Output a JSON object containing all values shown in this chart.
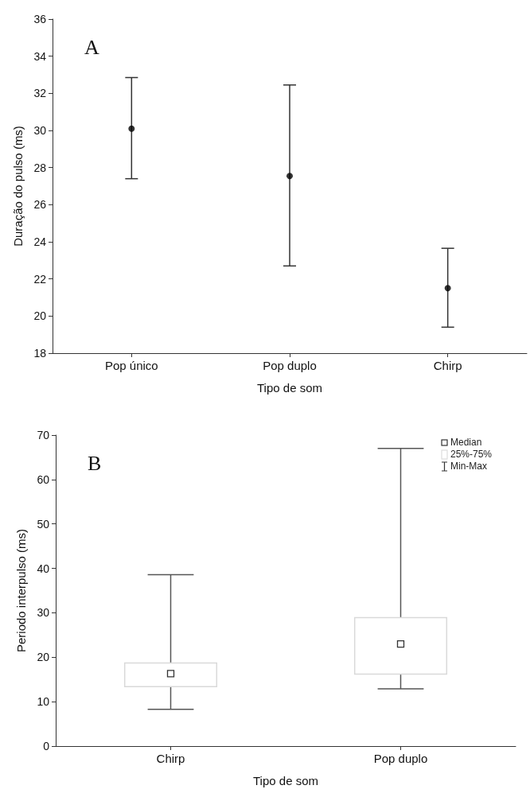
{
  "chart_data": [
    {
      "type": "scatter",
      "categories": [
        "Pop único",
        "Pop duplo",
        "Chirp"
      ],
      "values": [
        30.1,
        27.55,
        21.5
      ],
      "errors": [
        [
          27.4,
          32.85
        ],
        [
          22.7,
          32.45
        ],
        [
          19.4,
          23.65
        ]
      ],
      "color": "#000000",
      "marker": "circle",
      "ylim": [
        18,
        36
      ],
      "yticks": [
        18,
        20,
        22,
        24,
        26,
        28,
        30,
        32,
        34,
        36
      ],
      "xlabel": "Tipo de som",
      "ylabel": "Duração do pulso (ms)",
      "annotations": [
        "A"
      ],
      "grid": false
    },
    {
      "type": "box",
      "categories": [
        "Chirp",
        "Pop duplo"
      ],
      "boxes": [
        {
          "low": 8.3,
          "q1": 13.4,
          "median": 16.3,
          "q3": 18.7,
          "high": 38.6
        },
        {
          "low": 12.9,
          "q1": 16.2,
          "median": 23,
          "q3": 28.9,
          "high": 67
        }
      ],
      "color": "#d9d9d9",
      "ylim": [
        0,
        70
      ],
      "yticks": [
        0,
        10,
        20,
        30,
        40,
        50,
        60,
        70
      ],
      "xlabel": "Tipo de som",
      "ylabel": "Periodo interpulso (ms)",
      "annotations": [
        "B",
        "Median",
        "25%-75%",
        "Min-Max"
      ],
      "grid": false
    }
  ]
}
